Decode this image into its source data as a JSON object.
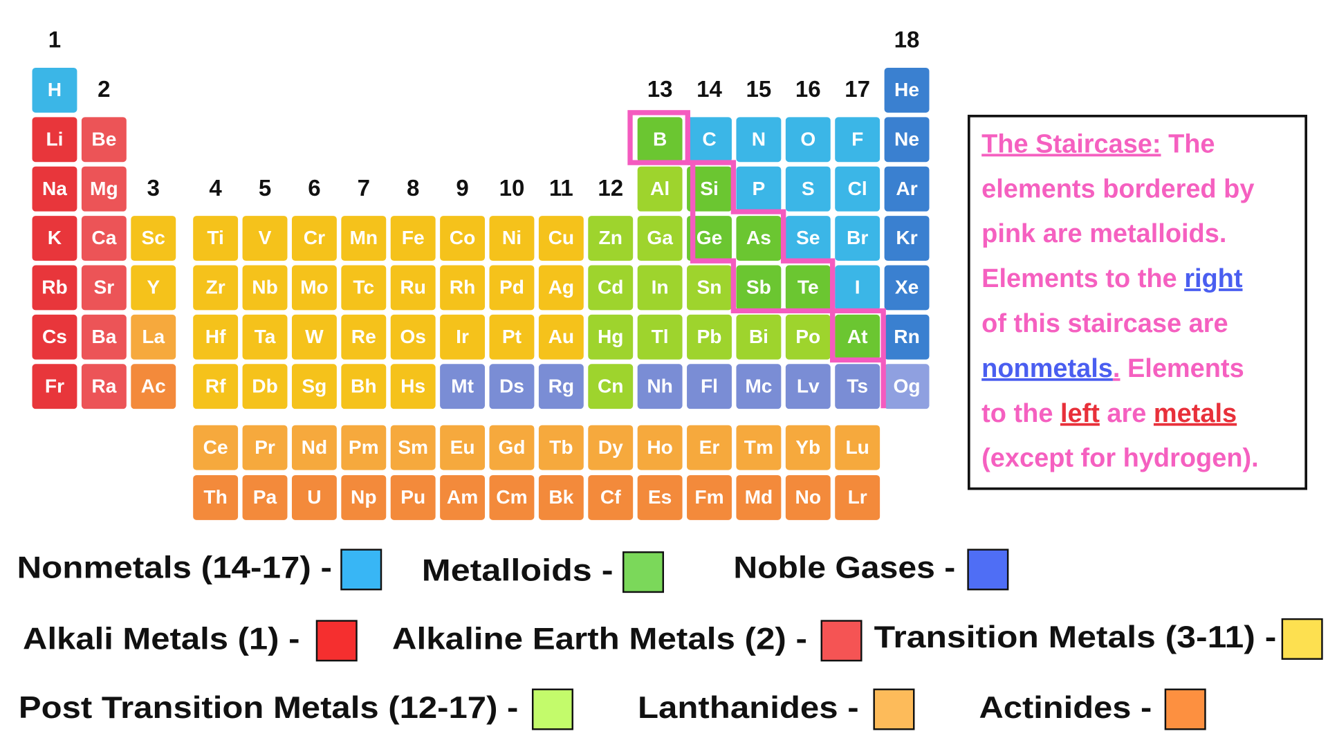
{
  "groups": [
    1,
    2,
    3,
    4,
    5,
    6,
    7,
    8,
    9,
    10,
    11,
    12,
    13,
    14,
    15,
    16,
    17,
    18
  ],
  "elements": {
    "rows": [
      [
        {
          "symbol": "H",
          "color": "#3bb6e7"
        },
        null,
        null,
        null,
        null,
        null,
        null,
        null,
        null,
        null,
        null,
        null,
        null,
        null,
        null,
        null,
        null,
        {
          "symbol": "He",
          "color": "#3a80d0"
        }
      ],
      [
        {
          "symbol": "Li",
          "color": "#e8363b"
        },
        {
          "symbol": "Be",
          "color": "#ec5457"
        },
        null,
        null,
        null,
        null,
        null,
        null,
        null,
        null,
        null,
        null,
        {
          "symbol": "B",
          "color": "#6bc631"
        },
        {
          "symbol": "C",
          "color": "#3bb6e7"
        },
        {
          "symbol": "N",
          "color": "#3bb6e7"
        },
        {
          "symbol": "O",
          "color": "#3bb6e7"
        },
        {
          "symbol": "F",
          "color": "#3bb6e7"
        },
        {
          "symbol": "Ne",
          "color": "#3a80d0"
        }
      ],
      [
        {
          "symbol": "Na",
          "color": "#e8363b"
        },
        {
          "symbol": "Mg",
          "color": "#ec5457"
        },
        null,
        null,
        null,
        null,
        null,
        null,
        null,
        null,
        null,
        null,
        {
          "symbol": "Al",
          "color": "#9ed42d"
        },
        {
          "symbol": "Si",
          "color": "#6bc631"
        },
        {
          "symbol": "P",
          "color": "#3bb6e7"
        },
        {
          "symbol": "S",
          "color": "#3bb6e7"
        },
        {
          "symbol": "Cl",
          "color": "#3bb6e7"
        },
        {
          "symbol": "Ar",
          "color": "#3a80d0"
        }
      ],
      [
        {
          "symbol": "K",
          "color": "#e8363b"
        },
        {
          "symbol": "Ca",
          "color": "#ec5457"
        },
        {
          "symbol": "Sc",
          "color": "#f5c21b"
        },
        {
          "symbol": "Ti",
          "color": "#f5c21b"
        },
        {
          "symbol": "V",
          "color": "#f5c21b"
        },
        {
          "symbol": "Cr",
          "color": "#f5c21b"
        },
        {
          "symbol": "Mn",
          "color": "#f5c21b"
        },
        {
          "symbol": "Fe",
          "color": "#f5c21b"
        },
        {
          "symbol": "Co",
          "color": "#f5c21b"
        },
        {
          "symbol": "Ni",
          "color": "#f5c21b"
        },
        {
          "symbol": "Cu",
          "color": "#f5c21b"
        },
        {
          "symbol": "Zn",
          "color": "#9ed42d"
        },
        {
          "symbol": "Ga",
          "color": "#9ed42d"
        },
        {
          "symbol": "Ge",
          "color": "#6bc631"
        },
        {
          "symbol": "As",
          "color": "#6bc631"
        },
        {
          "symbol": "Se",
          "color": "#3bb6e7"
        },
        {
          "symbol": "Br",
          "color": "#3bb6e7"
        },
        {
          "symbol": "Kr",
          "color": "#3a80d0"
        }
      ],
      [
        {
          "symbol": "Rb",
          "color": "#e8363b"
        },
        {
          "symbol": "Sr",
          "color": "#ec5457"
        },
        {
          "symbol": "Y",
          "color": "#f5c21b"
        },
        {
          "symbol": "Zr",
          "color": "#f5c21b"
        },
        {
          "symbol": "Nb",
          "color": "#f5c21b"
        },
        {
          "symbol": "Mo",
          "color": "#f5c21b"
        },
        {
          "symbol": "Tc",
          "color": "#f5c21b"
        },
        {
          "symbol": "Ru",
          "color": "#f5c21b"
        },
        {
          "symbol": "Rh",
          "color": "#f5c21b"
        },
        {
          "symbol": "Pd",
          "color": "#f5c21b"
        },
        {
          "symbol": "Ag",
          "color": "#f5c21b"
        },
        {
          "symbol": "Cd",
          "color": "#9ed42d"
        },
        {
          "symbol": "In",
          "color": "#9ed42d"
        },
        {
          "symbol": "Sn",
          "color": "#9ed42d"
        },
        {
          "symbol": "Sb",
          "color": "#6bc631"
        },
        {
          "symbol": "Te",
          "color": "#6bc631"
        },
        {
          "symbol": "I",
          "color": "#3bb6e7"
        },
        {
          "symbol": "Xe",
          "color": "#3a80d0"
        }
      ],
      [
        {
          "symbol": "Cs",
          "color": "#e8363b"
        },
        {
          "symbol": "Ba",
          "color": "#ec5457"
        },
        {
          "symbol": "La",
          "color": "#f6a93d"
        },
        {
          "symbol": "Hf",
          "color": "#f5c21b"
        },
        {
          "symbol": "Ta",
          "color": "#f5c21b"
        },
        {
          "symbol": "W",
          "color": "#f5c21b"
        },
        {
          "symbol": "Re",
          "color": "#f5c21b"
        },
        {
          "symbol": "Os",
          "color": "#f5c21b"
        },
        {
          "symbol": "Ir",
          "color": "#f5c21b"
        },
        {
          "symbol": "Pt",
          "color": "#f5c21b"
        },
        {
          "symbol": "Au",
          "color": "#f5c21b"
        },
        {
          "symbol": "Hg",
          "color": "#9ed42d"
        },
        {
          "symbol": "Tl",
          "color": "#9ed42d"
        },
        {
          "symbol": "Pb",
          "color": "#9ed42d"
        },
        {
          "symbol": "Bi",
          "color": "#9ed42d"
        },
        {
          "symbol": "Po",
          "color": "#9ed42d"
        },
        {
          "symbol": "At",
          "color": "#6bc631"
        },
        {
          "symbol": "Rn",
          "color": "#3a80d0"
        }
      ],
      [
        {
          "symbol": "Fr",
          "color": "#e8363b"
        },
        {
          "symbol": "Ra",
          "color": "#ec5457"
        },
        {
          "symbol": "Ac",
          "color": "#f38a3b"
        },
        {
          "symbol": "Rf",
          "color": "#f5c21b"
        },
        {
          "symbol": "Db",
          "color": "#f5c21b"
        },
        {
          "symbol": "Sg",
          "color": "#f5c21b"
        },
        {
          "symbol": "Bh",
          "color": "#f5c21b"
        },
        {
          "symbol": "Hs",
          "color": "#f5c21b"
        },
        {
          "symbol": "Mt",
          "color": "#7a8dd5"
        },
        {
          "symbol": "Ds",
          "color": "#7a8dd5"
        },
        {
          "symbol": "Rg",
          "color": "#7a8dd5"
        },
        {
          "symbol": "Cn",
          "color": "#9ed42d"
        },
        {
          "symbol": "Nh",
          "color": "#7a8dd5"
        },
        {
          "symbol": "Fl",
          "color": "#7a8dd5"
        },
        {
          "symbol": "Mc",
          "color": "#7a8dd5"
        },
        {
          "symbol": "Lv",
          "color": "#7a8dd5"
        },
        {
          "symbol": "Ts",
          "color": "#7a8dd5"
        },
        {
          "symbol": "Og",
          "color": "#8fa0e0"
        }
      ]
    ],
    "f_rows": [
      [
        {
          "symbol": "Ce",
          "color": "#f6a93d"
        },
        {
          "symbol": "Pr",
          "color": "#f6a93d"
        },
        {
          "symbol": "Nd",
          "color": "#f6a93d"
        },
        {
          "symbol": "Pm",
          "color": "#f6a93d"
        },
        {
          "symbol": "Sm",
          "color": "#f6a93d"
        },
        {
          "symbol": "Eu",
          "color": "#f6a93d"
        },
        {
          "symbol": "Gd",
          "color": "#f6a93d"
        },
        {
          "symbol": "Tb",
          "color": "#f6a93d"
        },
        {
          "symbol": "Dy",
          "color": "#f6a93d"
        },
        {
          "symbol": "Ho",
          "color": "#f6a93d"
        },
        {
          "symbol": "Er",
          "color": "#f6a93d"
        },
        {
          "symbol": "Tm",
          "color": "#f6a93d"
        },
        {
          "symbol": "Yb",
          "color": "#f6a93d"
        },
        {
          "symbol": "Lu",
          "color": "#f6a93d"
        }
      ],
      [
        {
          "symbol": "Th",
          "color": "#f38a3b"
        },
        {
          "symbol": "Pa",
          "color": "#f38a3b"
        },
        {
          "symbol": "U",
          "color": "#f38a3b"
        },
        {
          "symbol": "Np",
          "color": "#f38a3b"
        },
        {
          "symbol": "Pu",
          "color": "#f38a3b"
        },
        {
          "symbol": "Am",
          "color": "#f38a3b"
        },
        {
          "symbol": "Cm",
          "color": "#f38a3b"
        },
        {
          "symbol": "Bk",
          "color": "#f38a3b"
        },
        {
          "symbol": "Cf",
          "color": "#f38a3b"
        },
        {
          "symbol": "Es",
          "color": "#f38a3b"
        },
        {
          "symbol": "Fm",
          "color": "#f38a3b"
        },
        {
          "symbol": "Md",
          "color": "#f38a3b"
        },
        {
          "symbol": "No",
          "color": "#f38a3b"
        },
        {
          "symbol": "Lr",
          "color": "#f38a3b"
        }
      ]
    ]
  },
  "note": {
    "lines": [
      [
        "The Staircase:",
        " The"
      ],
      [
        "elements bordered by"
      ],
      [
        "pink are metalloids."
      ],
      [
        "Elements to the ",
        "right"
      ],
      [
        "of this staircase are"
      ],
      [
        "nonmetals",
        ".",
        " Elements"
      ],
      [
        "to the ",
        "left",
        " are ",
        "metals"
      ],
      [
        "(except for hydrogen)."
      ]
    ]
  },
  "legend": [
    {
      "name": "Nonmetals (14-17) -",
      "color": "#38b6f5"
    },
    {
      "name": "Metalloids -",
      "color": "#7bd85a"
    },
    {
      "name": "Noble Gases -",
      "color": "#4f6ef5"
    },
    {
      "name": "Alkali Metals (1) -",
      "color": "#f52f2f"
    },
    {
      "name": "Alkaline Earth Metals (2) -",
      "color": "#f55454"
    },
    {
      "name": "Transition Metals (3-11) -",
      "color": "#fde050"
    },
    {
      "name": "Post Transition Metals (12-17) -",
      "color": "#c3fb6b"
    },
    {
      "name": "Lanthanides -",
      "color": "#fdbb5a"
    },
    {
      "name": "Actinides -",
      "color": "#fd9040"
    }
  ]
}
